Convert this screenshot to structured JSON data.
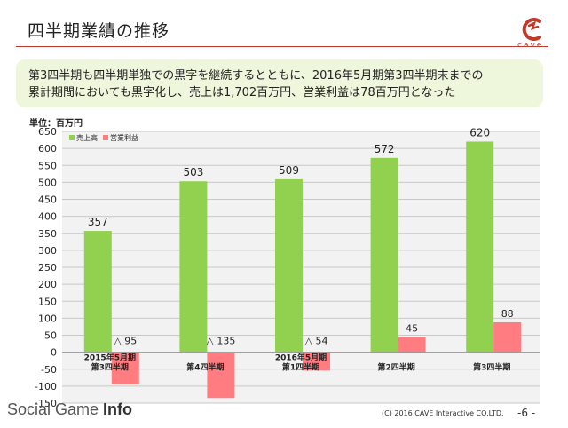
{
  "header": {
    "title": "四半期業績の推移",
    "logo_text": "cave",
    "logo_color": "#c0392b"
  },
  "banner": {
    "line1": "第3四半期も四半期単独での黒字を継続するとともに、2016年5月期第3四半期末までの",
    "line2": "累計期間においても黒字化し、売上は1,702百万円、営業利益は78百万円となった",
    "background": "#eef6dc"
  },
  "footer": {
    "watermark_light": "Social Game ",
    "watermark_bold": "Info",
    "copyright": "(C) 2016 CAVE Interactive CO.LTD.",
    "page_number": "-6 -"
  },
  "chart_data": {
    "type": "bar",
    "unit_label": "単位：百万円",
    "categories": [
      [
        "2015年5月期",
        "第3四半期"
      ],
      [
        "第4四半期"
      ],
      [
        "2016年5月期",
        "第1四半期"
      ],
      [
        "第2四半期"
      ],
      [
        "第3四半期"
      ]
    ],
    "series": [
      {
        "name": "売上高",
        "color": "#92d050",
        "values": [
          357,
          503,
          509,
          572,
          620
        ],
        "labels": [
          "357",
          "503",
          "509",
          "572",
          "620"
        ]
      },
      {
        "name": "営業利益",
        "color": "#ff7c80",
        "values": [
          -95,
          -135,
          -54,
          45,
          88
        ],
        "labels": [
          "△ 95",
          "△ 135",
          "△ 54",
          "45",
          "88"
        ]
      }
    ],
    "ylim": [
      -150,
      650
    ],
    "yticks": [
      -150,
      -100,
      -50,
      0,
      50,
      100,
      150,
      200,
      250,
      300,
      350,
      400,
      450,
      500,
      550,
      600,
      650
    ],
    "grid": true,
    "plot_background": "#f2f2f2",
    "legend": "top-left"
  }
}
